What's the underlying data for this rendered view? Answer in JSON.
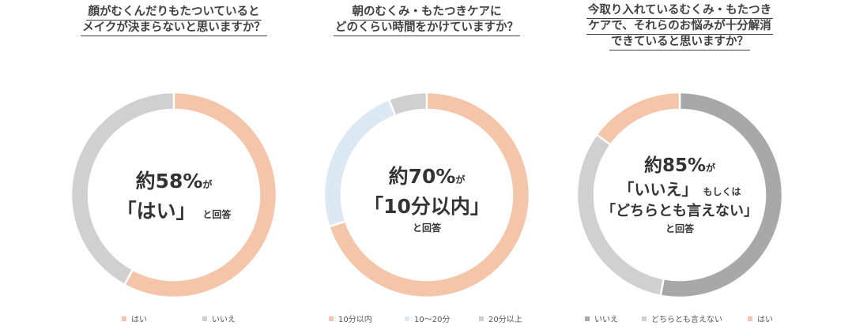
{
  "chart_data": [
    {
      "type": "pie",
      "title_lines": [
        "顔がむくんだりもたついていると",
        "メイクが決まらないと思いますか？"
      ],
      "categories": [
        "はい",
        "いいえ"
      ],
      "values": [
        58,
        42
      ],
      "colors": [
        "#F5C5AA",
        "#D0D0D0"
      ],
      "center": {
        "line1": "約58%",
        "line1_suffix": "が",
        "line2": "「はい」",
        "line2_suffix": "と回答"
      }
    },
    {
      "type": "pie",
      "title_lines": [
        "朝のむくみ・もたつきケアに",
        "どのくらい時間をかけていますか？"
      ],
      "categories": [
        "10分以内",
        "10～20分",
        "20分以上"
      ],
      "values": [
        70,
        24,
        6
      ],
      "colors": [
        "#F5C5AA",
        "#DDE8F5",
        "#D0D0D0"
      ],
      "center": {
        "line1": "約70%",
        "line1_suffix": "が",
        "line2": "「10分以内」",
        "line3": "と回答"
      }
    },
    {
      "type": "pie",
      "title_lines": [
        "今取り入れているむくみ・もたつき",
        "ケアで、それらのお悩みが十分解消",
        "できていると思いますか？"
      ],
      "categories": [
        "いいえ",
        "どちらとも言えない",
        "はい"
      ],
      "values": [
        53,
        32,
        15
      ],
      "colors": [
        "#A8A8A8",
        "#D0D0D0",
        "#F5C5AA"
      ],
      "center": {
        "line1": "約85%",
        "line1_suffix": "が",
        "line2": "「いいえ」",
        "line2_suffix": "もしくは",
        "line3": "「どちらとも言えない」",
        "line4": "と回答"
      }
    }
  ]
}
